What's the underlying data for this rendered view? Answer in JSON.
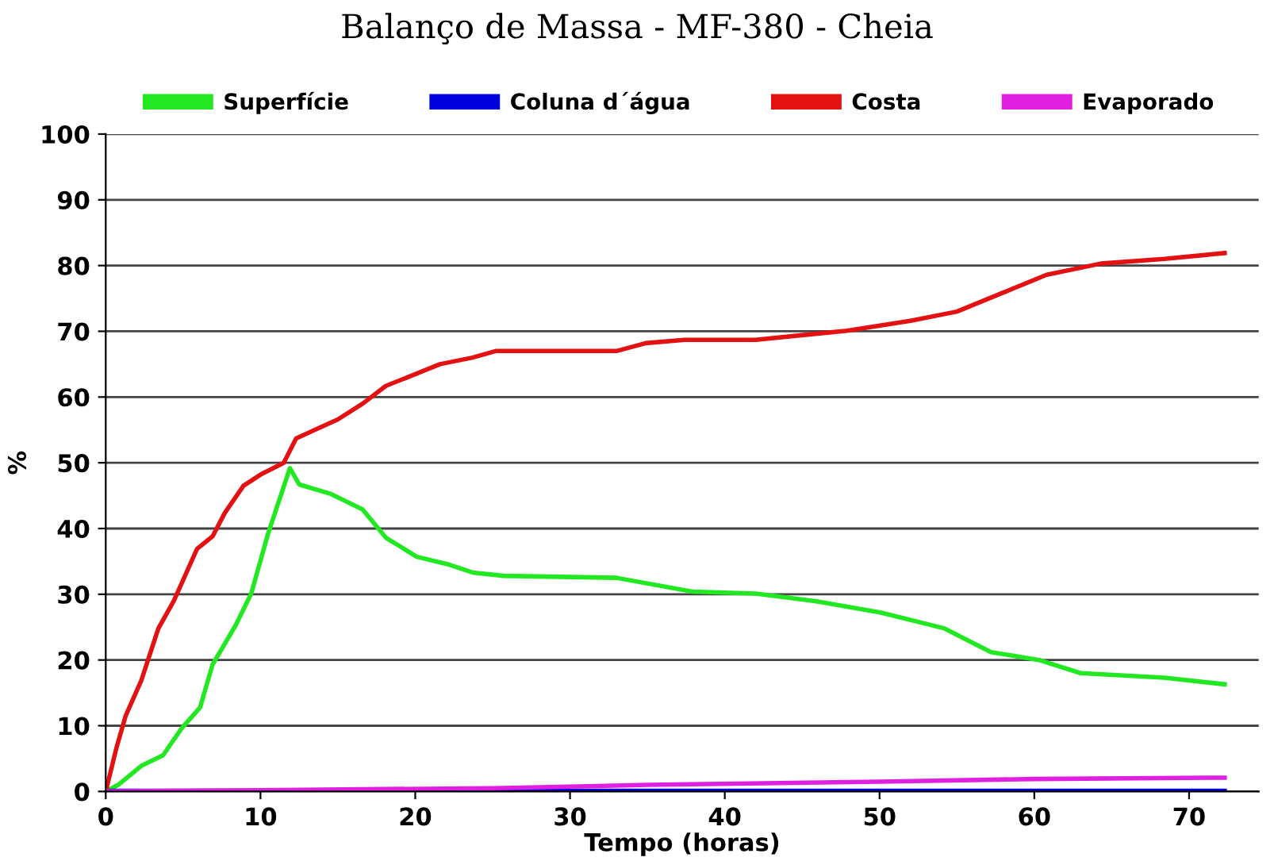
{
  "chart_data": {
    "type": "line",
    "title": "Balanço de Massa - MF-380 - Cheia",
    "xlabel": "Tempo (horas)",
    "ylabel": "%",
    "xlim": [
      0,
      74.5
    ],
    "xticks": [
      0,
      10,
      20,
      30,
      40,
      50,
      60,
      70
    ],
    "ylim": [
      0,
      100
    ],
    "yticks": [
      0,
      10,
      20,
      30,
      40,
      50,
      60,
      70,
      80,
      90,
      100
    ],
    "grid": "y",
    "legend": "top",
    "marker": "none",
    "line_style": "solid",
    "series": [
      {
        "name": "Superfície",
        "color": "#22e822",
        "x": [
          0,
          0.8,
          2.3,
          3.7,
          4.9,
          6.1,
          6.9,
          8.4,
          9.4,
          10.5,
          11.9,
          12.5,
          14.5,
          16.6,
          18.1,
          20.1,
          22.2,
          23.7,
          25.7,
          33,
          37.9,
          42,
          46,
          50.1,
          54.2,
          57.2,
          60.3,
          63,
          68.4,
          72.3
        ],
        "values": [
          0,
          1,
          3.9,
          5.5,
          9.6,
          12.8,
          19.3,
          25.3,
          30.1,
          39.3,
          49.2,
          46.7,
          45.3,
          42.9,
          38.6,
          35.7,
          34.5,
          33.3,
          32.8,
          32.5,
          30.4,
          30.1,
          28.9,
          27.2,
          24.8,
          21.2,
          20,
          18,
          17.3,
          16.3
        ]
      },
      {
        "name": "Coluna d´água",
        "color": "#0000dd",
        "x": [
          0,
          72.3
        ],
        "values": [
          0.1,
          0.1
        ]
      },
      {
        "name": "Costa",
        "color": "#e31111",
        "x": [
          0,
          0.7,
          1.3,
          2.3,
          3.4,
          4.4,
          5.9,
          6.9,
          7.7,
          8.9,
          10,
          11.5,
          12.3,
          13.5,
          15,
          16.6,
          18.1,
          19.6,
          21.6,
          23.7,
          25.2,
          26.7,
          33,
          34.9,
          37.4,
          42,
          47.9,
          52,
          55,
          58,
          60.8,
          64.3,
          68.4,
          72.3
        ],
        "values": [
          0,
          6.7,
          11.6,
          16.9,
          24.8,
          29,
          36.9,
          38.8,
          42.4,
          46.5,
          48.2,
          50,
          53.7,
          55,
          56.6,
          59,
          61.7,
          63.1,
          65,
          66,
          67,
          67,
          67,
          68.2,
          68.7,
          68.7,
          70.1,
          71.6,
          73,
          75.9,
          78.6,
          80.3,
          81,
          81.9
        ]
      },
      {
        "name": "Evaporado",
        "color": "#e020e0",
        "x": [
          0,
          10,
          25,
          35,
          50,
          60,
          72.3
        ],
        "values": [
          0,
          0.2,
          0.5,
          1,
          1.5,
          1.9,
          2.1
        ]
      }
    ]
  }
}
